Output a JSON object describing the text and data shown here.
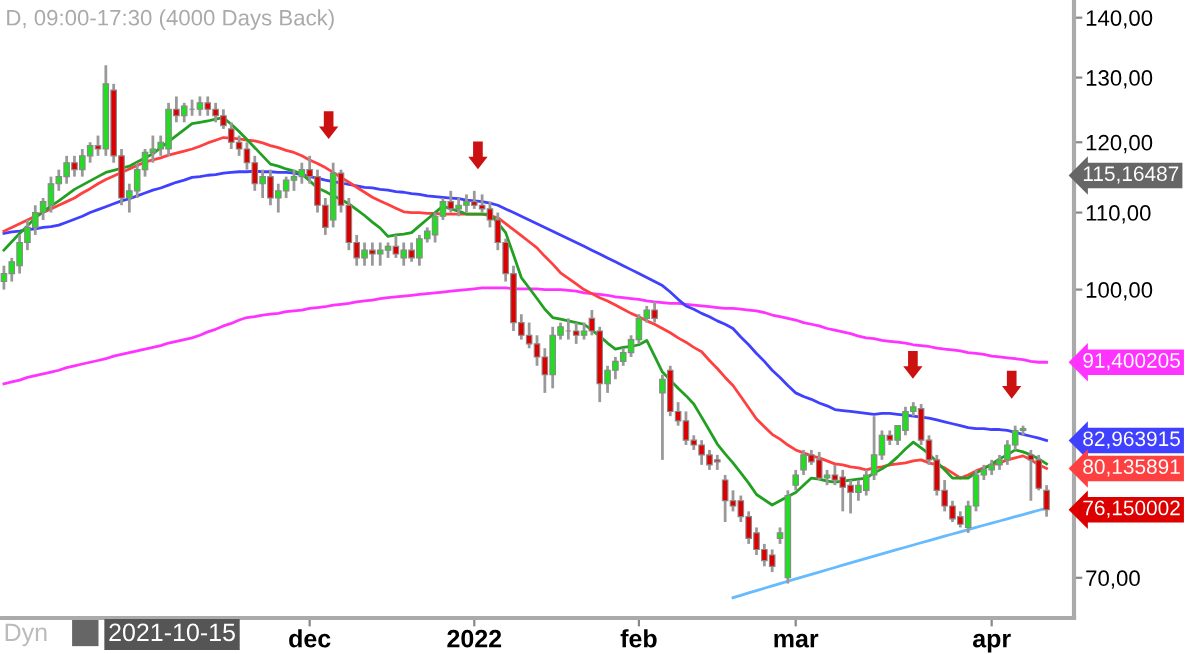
{
  "chart_data": {
    "type": "candlestick",
    "title": "D, 09:00-17:30 (4000 Days Back)",
    "log": "y",
    "ylim": [
      66.6,
      143.1
    ],
    "yticks": [
      {
        "value": 70,
        "label": "70,00"
      },
      {
        "value": 100,
        "label": "100,00"
      },
      {
        "value": 110,
        "label": "110,00"
      },
      {
        "value": 120,
        "label": "120,00"
      },
      {
        "value": 130,
        "label": "130,00"
      },
      {
        "value": 140,
        "label": "140,00"
      }
    ],
    "categories": [
      null,
      null,
      null,
      null,
      null,
      null,
      null,
      null,
      null,
      null,
      null,
      null,
      null,
      null,
      null,
      null,
      null,
      null,
      null,
      null,
      null,
      null,
      null,
      null,
      null,
      null,
      null,
      null,
      null,
      null,
      null,
      null,
      null,
      null,
      null,
      null,
      null,
      null,
      null,
      "dec",
      null,
      null,
      null,
      null,
      null,
      null,
      null,
      null,
      null,
      null,
      null,
      null,
      null,
      null,
      null,
      null,
      null,
      null,
      null,
      null,
      "2022",
      null,
      null,
      null,
      null,
      null,
      null,
      null,
      null,
      null,
      null,
      null,
      null,
      null,
      null,
      null,
      null,
      null,
      null,
      null,
      null,
      "feb",
      null,
      null,
      null,
      null,
      null,
      null,
      null,
      null,
      null,
      null,
      null,
      null,
      null,
      null,
      null,
      null,
      null,
      null,
      null,
      "mar",
      null,
      null,
      null,
      null,
      null,
      null,
      null,
      null,
      null,
      null,
      null,
      null,
      null,
      null,
      null,
      null,
      null,
      null,
      null,
      null,
      null,
      null,
      null,
      null,
      "apr",
      null,
      null,
      null,
      null,
      null,
      null,
      null
    ],
    "ohlc": [
      [
        101,
        103,
        100,
        102
      ],
      [
        102,
        104,
        101,
        103.5
      ],
      [
        103,
        107,
        102,
        106
      ],
      [
        106,
        109,
        105,
        108
      ],
      [
        108,
        111,
        107,
        110
      ],
      [
        110,
        112,
        109,
        111.5
      ],
      [
        111,
        115,
        110,
        114
      ],
      [
        114,
        116,
        113,
        115
      ],
      [
        115,
        118,
        114,
        117
      ],
      [
        117,
        118,
        115,
        116
      ],
      [
        116,
        119,
        115,
        118
      ],
      [
        118,
        120,
        117,
        119.5
      ],
      [
        119.5,
        121,
        118,
        119
      ],
      [
        119,
        132,
        118,
        129
      ],
      [
        128,
        129,
        117,
        118
      ],
      [
        118,
        119,
        111,
        112
      ],
      [
        112,
        114,
        110,
        113
      ],
      [
        113,
        117,
        112,
        116
      ],
      [
        116,
        119,
        115,
        118.5
      ],
      [
        118.5,
        121,
        117,
        119
      ],
      [
        119,
        121,
        118,
        120
      ],
      [
        119,
        126,
        118,
        125
      ],
      [
        125,
        127,
        123,
        124
      ],
      [
        124,
        126,
        123,
        125.5
      ],
      [
        125,
        126.5,
        124,
        125
      ],
      [
        125,
        127,
        124,
        126
      ],
      [
        126,
        127,
        124,
        125
      ],
      [
        125,
        126,
        123,
        124
      ],
      [
        124,
        125,
        122,
        122.5
      ],
      [
        122,
        123,
        119,
        120
      ],
      [
        120,
        121,
        118,
        119
      ],
      [
        119,
        120,
        116,
        117
      ],
      [
        117,
        118,
        113,
        114
      ],
      [
        114,
        116,
        112,
        115
      ],
      [
        115,
        116,
        111,
        112
      ],
      [
        112,
        114,
        110,
        113
      ],
      [
        113,
        115,
        112,
        114.5
      ],
      [
        114.5,
        116,
        113,
        115
      ],
      [
        115,
        117,
        114,
        116
      ],
      [
        116,
        118,
        114,
        115
      ],
      [
        115,
        116,
        110,
        111
      ],
      [
        111,
        112,
        107,
        108
      ],
      [
        109,
        117,
        108,
        115.5
      ],
      [
        115.5,
        116,
        110,
        111
      ],
      [
        111,
        112,
        105,
        106
      ],
      [
        106,
        107,
        103,
        104
      ],
      [
        104,
        106,
        103,
        105
      ],
      [
        105,
        106,
        103,
        104.5
      ],
      [
        104.5,
        106,
        103,
        105
      ],
      [
        105,
        106,
        104,
        105.5
      ],
      [
        105.5,
        107,
        104,
        104.5
      ],
      [
        104,
        106,
        103,
        105
      ],
      [
        105,
        106,
        103.5,
        104
      ],
      [
        104,
        107,
        103,
        106.5
      ],
      [
        106.5,
        108,
        106,
        107.5
      ],
      [
        107,
        110,
        106,
        109.5
      ],
      [
        109.5,
        112,
        109,
        111.5
      ],
      [
        111.5,
        113,
        110,
        110.5
      ],
      [
        110.5,
        112,
        109.5,
        111
      ],
      [
        111,
        112.5,
        110,
        111.5
      ],
      [
        111.5,
        113,
        110.5,
        111
      ],
      [
        111,
        112.5,
        110,
        110.5
      ],
      [
        110.5,
        111.5,
        108,
        109
      ],
      [
        109,
        110,
        105,
        106
      ],
      [
        106,
        106.5,
        101,
        102
      ],
      [
        102,
        103,
        95,
        96
      ],
      [
        96,
        97,
        94,
        94.5
      ],
      [
        94.5,
        96,
        93,
        93.5
      ],
      [
        93.5,
        94.5,
        91,
        92
      ],
      [
        92,
        93,
        88,
        90
      ],
      [
        90,
        95.5,
        88.5,
        94.5
      ],
      [
        94.5,
        96,
        94,
        95.5
      ],
      [
        95,
        96.5,
        94,
        95
      ],
      [
        95,
        96,
        93.5,
        94.5
      ],
      [
        94.5,
        96,
        94,
        95
      ],
      [
        96.5,
        97.5,
        94.5,
        95
      ],
      [
        95,
        95.5,
        87,
        89
      ],
      [
        89,
        91,
        88,
        90.5
      ],
      [
        90.5,
        92,
        89.5,
        91.5
      ],
      [
        91.5,
        93,
        91,
        92.5
      ],
      [
        92.5,
        94.5,
        92,
        94
      ],
      [
        94,
        97,
        93.5,
        96.5
      ],
      [
        96.5,
        98,
        96,
        97.5
      ],
      [
        97.5,
        98.5,
        96,
        96.5
      ],
      [
        88,
        90,
        81,
        89.5
      ],
      [
        90.5,
        91,
        85.5,
        86
      ],
      [
        86,
        87,
        84.5,
        85
      ],
      [
        85,
        86,
        82.5,
        83
      ],
      [
        83,
        83.5,
        82,
        82.5
      ],
      [
        82.5,
        83,
        80.5,
        81.5
      ],
      [
        81.5,
        82,
        80,
        80.5
      ],
      [
        81,
        81.5,
        80,
        80.8
      ],
      [
        79,
        79.5,
        75,
        77
      ],
      [
        77,
        78,
        76,
        76.5
      ],
      [
        77,
        77.5,
        75,
        75.5
      ],
      [
        75.5,
        76,
        73,
        73.5
      ],
      [
        74,
        74.5,
        72,
        72.5
      ],
      [
        72.5,
        73,
        71,
        71.5
      ],
      [
        72,
        72.5,
        70.5,
        71
      ],
      [
        73.5,
        74.5,
        73,
        74
      ],
      [
        70,
        78,
        69.5,
        77.5
      ],
      [
        78.5,
        80,
        78,
        79.5
      ],
      [
        80,
        82,
        79.5,
        81.5
      ],
      [
        81.5,
        82,
        80.5,
        80.8
      ],
      [
        81,
        81.8,
        79,
        79.2
      ],
      [
        79.2,
        80,
        78.5,
        79.5
      ],
      [
        79.5,
        80.5,
        78.5,
        79
      ],
      [
        79.3,
        80,
        76,
        78.3
      ],
      [
        78.5,
        79,
        75.8,
        77.8
      ],
      [
        77.8,
        79,
        77,
        78.5
      ],
      [
        78,
        80,
        77.5,
        79.5
      ],
      [
        79.5,
        85.5,
        79,
        81.5
      ],
      [
        81.5,
        84,
        81,
        83.5
      ],
      [
        83.5,
        84,
        82.5,
        83
      ],
      [
        83,
        84.5,
        82.5,
        84.5
      ],
      [
        84,
        86.5,
        83.5,
        86
      ],
      [
        86,
        87,
        85.5,
        86.5
      ],
      [
        86.3,
        86.8,
        82.5,
        83
      ],
      [
        83,
        83.5,
        80.5,
        81
      ],
      [
        81,
        81.5,
        77.5,
        78
      ],
      [
        78,
        79,
        76,
        76.5
      ],
      [
        76.5,
        77,
        75,
        75.3
      ],
      [
        75.5,
        76,
        74.5,
        74.8
      ],
      [
        74.5,
        77,
        74,
        76.5
      ],
      [
        76.5,
        80,
        76,
        79.5
      ],
      [
        79.5,
        80.5,
        79,
        80
      ],
      [
        80,
        81,
        79.5,
        80.5
      ],
      [
        80.5,
        81.5,
        80,
        81
      ],
      [
        81,
        83,
        80.5,
        82.5
      ],
      [
        82.5,
        84.5,
        82,
        84
      ],
      [
        84,
        84.5,
        83.5,
        84.2
      ],
      [
        81.5,
        82,
        77,
        81
      ],
      [
        81,
        81.5,
        78,
        78.2
      ],
      [
        78,
        78.5,
        75.5,
        76.15
      ]
    ],
    "series": [
      {
        "type": "line",
        "color": "#ff33ff",
        "values": [
          89,
          89.2,
          89.4,
          89.7,
          89.9,
          90.1,
          90.3,
          90.5,
          90.8,
          91.0,
          91.2,
          91.4,
          91.6,
          91.8,
          92.1,
          92.3,
          92.5,
          92.7,
          92.9,
          93.1,
          93.3,
          93.6,
          93.8,
          94.0,
          94.2,
          94.5,
          94.9,
          95.2,
          95.6,
          95.9,
          96.3,
          96.6,
          96.7,
          96.9,
          97.0,
          97.1,
          97.3,
          97.4,
          97.5,
          97.7,
          97.8,
          97.9,
          98.1,
          98.2,
          98.3,
          98.5,
          98.6,
          98.7,
          98.9,
          99.0,
          99.1,
          99.2,
          99.3,
          99.4,
          99.5,
          99.6,
          99.7,
          99.8,
          99.9,
          100.0,
          100.1,
          100.2,
          100.2,
          100.2,
          100.2,
          100.1,
          100.1,
          100.1,
          100.1,
          100.0,
          100.0,
          100.0,
          99.9,
          99.8,
          99.6,
          99.5,
          99.4,
          99.3,
          99.1,
          99.0,
          98.9,
          98.8,
          98.6,
          98.5,
          98.4,
          98.3,
          98.3,
          98.2,
          98.1,
          98.0,
          97.9,
          97.8,
          97.7,
          97.7,
          97.6,
          97.5,
          97.4,
          97.2,
          96.9,
          96.7,
          96.5,
          96.3,
          96.0,
          95.8,
          95.6,
          95.3,
          95.1,
          94.9,
          94.7,
          94.4,
          94.2,
          94.1,
          93.9,
          93.8,
          93.7,
          93.6,
          93.4,
          93.3,
          93.2,
          93.0,
          92.9,
          92.8,
          92.7,
          92.5,
          92.4,
          92.3,
          92.1,
          92.0,
          91.9,
          91.8,
          91.7,
          91.5,
          91.4,
          91.4
        ],
        "value_labels": [
          null,
          null,
          null,
          null,
          null,
          null,
          null,
          null,
          null,
          null,
          null,
          null,
          null,
          null,
          null,
          null,
          null,
          null,
          null,
          null,
          null,
          null,
          null,
          null,
          null,
          null,
          null,
          null,
          null,
          null,
          null,
          null,
          null,
          null,
          null,
          null,
          null,
          null,
          null,
          null,
          null,
          null,
          null,
          null,
          null,
          null,
          null,
          null,
          null,
          null,
          null,
          null,
          null,
          null,
          null,
          null,
          null,
          null,
          null,
          null,
          null,
          null,
          null,
          null,
          null,
          null,
          null,
          null,
          null,
          null,
          null,
          null,
          null,
          null,
          null,
          null,
          null,
          null,
          null,
          null,
          null,
          null,
          null,
          null,
          null,
          null,
          null,
          null,
          null,
          null,
          null,
          null,
          null,
          null,
          null,
          null,
          null,
          null,
          null,
          null,
          null,
          null,
          null,
          null,
          null,
          null,
          null,
          null,
          null,
          null,
          null,
          null,
          null,
          null,
          null,
          null,
          null,
          null,
          null,
          null,
          null,
          null,
          null,
          null,
          null,
          null,
          null,
          null,
          null,
          null,
          null,
          null,
          null,
          "91,400205"
        ]
      },
      {
        "type": "line",
        "color": "#4040ff",
        "values": [
          107.2,
          107.4,
          107.5,
          107.7,
          107.8,
          108.0,
          108.1,
          108.3,
          108.7,
          109.1,
          109.5,
          110.0,
          110.4,
          110.8,
          111.2,
          111.6,
          111.9,
          112.3,
          112.7,
          113.1,
          113.4,
          113.8,
          114.2,
          114.5,
          114.9,
          115.0,
          115.2,
          115.3,
          115.5,
          115.6,
          115.7,
          115.7,
          115.8,
          115.7,
          115.7,
          115.6,
          115.6,
          115.5,
          115.3,
          115.0,
          114.8,
          114.5,
          114.3,
          114.1,
          113.9,
          113.7,
          113.5,
          113.4,
          113.2,
          113.1,
          112.9,
          112.8,
          112.6,
          112.5,
          112.3,
          112.2,
          112.1,
          112.0,
          111.9,
          111.7,
          111.6,
          111.5,
          111.3,
          111.0,
          110.5,
          110.0,
          109.5,
          109.0,
          108.5,
          108.0,
          107.5,
          107.0,
          106.5,
          106.0,
          105.5,
          105.0,
          104.5,
          104.0,
          103.5,
          103.0,
          102.5,
          102.0,
          101.5,
          101.0,
          100.5,
          99.7,
          98.8,
          98.0,
          97.6,
          97.1,
          96.7,
          96.2,
          95.8,
          95.3,
          94.3,
          93.4,
          92.4,
          91.5,
          90.5,
          89.7,
          88.8,
          88.0,
          87.6,
          87.3,
          86.9,
          86.6,
          86.2,
          86.1,
          86.0,
          85.9,
          85.8,
          85.7,
          85.8,
          85.8,
          85.7,
          85.6,
          85.5,
          85.4,
          85.3,
          85.1,
          84.9,
          84.7,
          84.5,
          84.3,
          84.2,
          84.2,
          84.1,
          84.1,
          84.0,
          83.8,
          83.6,
          83.4,
          83.2,
          82.96
        ],
        "value_labels": [
          null,
          null,
          null,
          null,
          null,
          null,
          null,
          null,
          null,
          null,
          null,
          null,
          null,
          null,
          null,
          null,
          null,
          null,
          null,
          null,
          null,
          null,
          null,
          null,
          null,
          null,
          null,
          null,
          null,
          null,
          null,
          null,
          null,
          null,
          null,
          null,
          null,
          null,
          null,
          null,
          null,
          null,
          null,
          null,
          null,
          null,
          null,
          null,
          null,
          null,
          null,
          null,
          null,
          null,
          null,
          null,
          null,
          null,
          null,
          null,
          null,
          null,
          null,
          null,
          null,
          null,
          null,
          null,
          null,
          null,
          null,
          null,
          null,
          null,
          null,
          null,
          null,
          null,
          null,
          null,
          null,
          null,
          null,
          null,
          null,
          null,
          null,
          null,
          null,
          null,
          null,
          null,
          null,
          null,
          null,
          null,
          null,
          null,
          null,
          null,
          null,
          null,
          null,
          null,
          null,
          null,
          null,
          null,
          null,
          null,
          null,
          null,
          null,
          null,
          null,
          null,
          null,
          null,
          null,
          null,
          null,
          null,
          null,
          null,
          null,
          null,
          null,
          null,
          null,
          null,
          null,
          null,
          null,
          "82,963915"
        ]
      },
      {
        "type": "line",
        "color": "#ff4040",
        "values": [
          107.5,
          108.0,
          108.5,
          109.0,
          109.5,
          110.0,
          110.5,
          111.0,
          111.5,
          112.0,
          112.7,
          113.3,
          114.0,
          114.6,
          115.1,
          115.6,
          116.1,
          116.6,
          117.1,
          117.4,
          117.7,
          118.1,
          118.4,
          118.7,
          119.0,
          119.4,
          119.9,
          120.3,
          120.7,
          120.6,
          120.5,
          120.3,
          120.2,
          119.9,
          119.5,
          119.2,
          118.8,
          118.5,
          118.0,
          117.4,
          116.9,
          116.3,
          115.6,
          114.9,
          114.2,
          113.5,
          112.8,
          112.1,
          111.6,
          111.1,
          110.6,
          110.1,
          110.0,
          110.0,
          109.9,
          109.9,
          109.8,
          109.8,
          109.8,
          109.8,
          109.8,
          109.8,
          109.6,
          109.3,
          108.5,
          107.7,
          106.9,
          106.1,
          105.3,
          104.2,
          103.2,
          102.1,
          101.4,
          100.7,
          100.0,
          99.5,
          99.0,
          98.6,
          98.1,
          97.6,
          97.1,
          96.7,
          96.2,
          95.8,
          95.3,
          94.8,
          94.2,
          93.7,
          93.1,
          92.6,
          91.6,
          90.7,
          89.7,
          88.8,
          87.6,
          86.4,
          85.2,
          84.4,
          83.6,
          83.1,
          82.5,
          82.0,
          81.7,
          81.4,
          81.2,
          80.9,
          80.6,
          80.5,
          80.3,
          80.2,
          80.0,
          80.2,
          80.3,
          80.5,
          80.6,
          80.7,
          80.9,
          81.0,
          80.7,
          80.5,
          80.2,
          79.7,
          79.2,
          79.5,
          79.9,
          80.2,
          80.5,
          80.7,
          81.0,
          81.2,
          81.4,
          81.0,
          80.5,
          80.14
        ],
        "value_labels": [
          null,
          null,
          null,
          null,
          null,
          null,
          null,
          null,
          null,
          null,
          null,
          null,
          null,
          null,
          null,
          null,
          null,
          null,
          null,
          null,
          null,
          null,
          null,
          null,
          null,
          null,
          null,
          null,
          null,
          null,
          null,
          null,
          null,
          null,
          null,
          null,
          null,
          null,
          null,
          null,
          null,
          null,
          null,
          null,
          null,
          null,
          null,
          null,
          null,
          null,
          null,
          null,
          null,
          null,
          null,
          null,
          null,
          null,
          null,
          null,
          null,
          null,
          null,
          null,
          null,
          null,
          null,
          null,
          null,
          null,
          null,
          null,
          null,
          null,
          null,
          null,
          null,
          null,
          null,
          null,
          null,
          null,
          null,
          null,
          null,
          null,
          null,
          null,
          null,
          null,
          null,
          null,
          null,
          null,
          null,
          null,
          null,
          null,
          null,
          null,
          null,
          null,
          null,
          null,
          null,
          null,
          null,
          null,
          null,
          null,
          null,
          null,
          null,
          null,
          null,
          null,
          null,
          null,
          null,
          null,
          null,
          null,
          null,
          null,
          null,
          null,
          null,
          null,
          null,
          null,
          null,
          null,
          null,
          "80,135891"
        ]
      },
      {
        "type": "line",
        "color": "#22a022",
        "values": [
          105.0,
          106.1,
          107.2,
          108.2,
          109.3,
          110.1,
          110.9,
          111.6,
          112.4,
          113.2,
          113.8,
          114.4,
          115.0,
          115.6,
          115.9,
          116.2,
          116.5,
          117.1,
          117.7,
          118.3,
          119.2,
          120.1,
          121.0,
          121.9,
          122.8,
          123.0,
          123.2,
          123.5,
          123.7,
          122.7,
          121.6,
          120.4,
          119.2,
          118.0,
          116.8,
          116.5,
          116.1,
          115.8,
          115.4,
          114.4,
          113.4,
          112.9,
          112.3,
          111.8,
          111.2,
          110.4,
          109.6,
          108.7,
          107.9,
          106.8,
          107.0,
          107.1,
          107.3,
          108.2,
          109.1,
          110.0,
          110.9,
          110.5,
          110.2,
          109.8,
          109.8,
          109.8,
          109.8,
          108.6,
          107.3,
          104.4,
          101.5,
          100.2,
          98.9,
          97.6,
          96.6,
          96.4,
          96.2,
          96.0,
          95.8,
          95.1,
          94.4,
          93.6,
          92.9,
          93.1,
          93.2,
          93.4,
          93.9,
          92.1,
          90.3,
          89.4,
          88.5,
          87.7,
          86.8,
          85.4,
          84.0,
          82.6,
          81.6,
          80.7,
          79.7,
          78.7,
          77.6,
          77.1,
          76.6,
          77.0,
          77.4,
          77.8,
          78.5,
          79.2,
          79.1,
          78.9,
          78.8,
          78.9,
          79.0,
          79.1,
          79.2,
          79.7,
          80.1,
          80.6,
          81.3,
          82.1,
          82.8,
          82.2,
          81.6,
          80.8,
          80.0,
          79.2,
          79.2,
          79.2,
          79.7,
          80.1,
          80.6,
          81.1,
          81.5,
          82.0,
          81.8,
          81.5,
          81.1,
          80.6
        ]
      },
      {
        "type": "line",
        "color": "#66bbff",
        "values": [
          null,
          null,
          null,
          null,
          null,
          null,
          null,
          null,
          null,
          null,
          null,
          null,
          null,
          null,
          null,
          null,
          null,
          null,
          null,
          null,
          null,
          null,
          null,
          null,
          null,
          null,
          null,
          null,
          null,
          null,
          null,
          null,
          null,
          null,
          null,
          null,
          null,
          null,
          null,
          null,
          null,
          null,
          null,
          null,
          null,
          null,
          null,
          null,
          null,
          null,
          null,
          null,
          null,
          null,
          null,
          null,
          null,
          null,
          null,
          null,
          null,
          null,
          null,
          null,
          null,
          null,
          null,
          null,
          null,
          null,
          null,
          null,
          null,
          null,
          null,
          null,
          null,
          null,
          null,
          null,
          null,
          null,
          null,
          null,
          null,
          null,
          null,
          null,
          null,
          null,
          null,
          null,
          null,
          68.3,
          68.5,
          68.7,
          68.9,
          69.1,
          69.3,
          69.5,
          69.7,
          69.9,
          70.1,
          70.3,
          70.5,
          70.7,
          70.9,
          71.1,
          71.3,
          71.5,
          71.7,
          71.9,
          72.1,
          72.3,
          72.5,
          72.7,
          72.9,
          73.1,
          73.3,
          73.5,
          73.7,
          73.9,
          74.1,
          74.3,
          74.5,
          74.7,
          74.9,
          75.1,
          75.3,
          75.5,
          75.7,
          75.9,
          76.1,
          76.3
        ]
      }
    ],
    "value_labels": [
      null,
      null,
      null,
      null,
      null,
      null,
      null,
      null,
      null,
      null,
      null,
      null,
      null,
      null,
      null,
      null,
      null,
      null,
      null,
      null,
      null,
      null,
      null,
      null,
      null,
      null,
      null,
      null,
      null,
      null,
      null,
      null,
      null,
      null,
      null,
      null,
      null,
      null,
      null,
      null,
      null,
      null,
      null,
      null,
      null,
      null,
      null,
      null,
      null,
      null,
      null,
      null,
      null,
      null,
      null,
      null,
      null,
      null,
      null,
      null,
      null,
      null,
      null,
      null,
      null,
      null,
      null,
      null,
      null,
      null,
      null,
      null,
      null,
      null,
      null,
      null,
      null,
      null,
      null,
      null,
      null,
      null,
      null,
      null,
      null,
      null,
      null,
      null,
      null,
      null,
      null,
      null,
      null,
      null,
      null,
      null,
      null,
      null,
      null,
      null,
      null,
      null,
      null,
      null,
      null,
      null,
      null,
      null,
      null,
      null,
      null,
      null,
      null,
      null,
      null,
      null,
      null,
      null,
      null,
      null,
      null,
      null,
      null,
      null,
      null,
      null,
      null,
      null,
      null,
      null,
      null,
      null,
      null,
      "76,150002"
    ],
    "annotations": [
      "Dyn",
      "2021-10-15",
      "115,16487"
    ]
  }
}
